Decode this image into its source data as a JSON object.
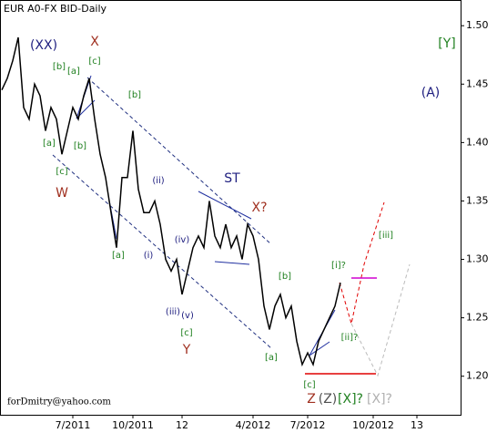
{
  "chart_data": {
    "type": "line",
    "title": "EUR A0-FX BID-Daily",
    "color": "#000000",
    "categories": [
      null,
      null,
      null,
      null,
      null,
      null,
      null,
      null,
      null,
      null,
      null,
      null,
      null,
      "7/2011",
      null,
      null,
      null,
      null,
      null,
      null,
      null,
      null,
      null,
      null,
      "10/2011",
      null,
      null,
      null,
      null,
      null,
      null,
      null,
      null,
      "12",
      null,
      null,
      null,
      null,
      null,
      null,
      null,
      null,
      null,
      null,
      null,
      null,
      "4/2012",
      null,
      null,
      null,
      null,
      null,
      null,
      null,
      null,
      null,
      "7/2012",
      null,
      null,
      null,
      null,
      null,
      null,
      null,
      null,
      null,
      null,
      null,
      "10/2012",
      null,
      null,
      null,
      null,
      null,
      null,
      null,
      "13",
      null,
      null,
      null,
      null,
      null,
      null,
      null,
      null
    ],
    "values": [
      1.445,
      1.455,
      1.47,
      1.49,
      1.43,
      1.42,
      1.45,
      1.44,
      1.41,
      1.43,
      1.42,
      1.39,
      1.41,
      1.43,
      1.42,
      1.44,
      1.455,
      1.42,
      1.39,
      1.37,
      1.34,
      1.31,
      1.37,
      1.37,
      1.41,
      1.36,
      1.34,
      1.34,
      1.35,
      1.33,
      1.3,
      1.29,
      1.3,
      1.27,
      1.29,
      1.31,
      1.32,
      1.31,
      1.35,
      1.32,
      1.31,
      1.33,
      1.31,
      1.32,
      1.3,
      1.33,
      1.32,
      1.3,
      1.26,
      1.24,
      1.26,
      1.27,
      1.25,
      1.26,
      1.23,
      1.21,
      1.22,
      1.21,
      1.23,
      1.24,
      1.25,
      1.26,
      1.28,
      null,
      null,
      null,
      null,
      null,
      null,
      null,
      null,
      null,
      null,
      null,
      null,
      null,
      null,
      null,
      null,
      null,
      null,
      null,
      null,
      null,
      null
    ],
    "ylim": [
      1.167,
      1.522
    ],
    "yticks": [
      {
        "value": 1.2,
        "label": "1.20"
      },
      1.25,
      {
        "value": 1.3,
        "label": "1.30"
      },
      1.35,
      {
        "value": 1.4,
        "label": "1.40"
      },
      1.45,
      {
        "value": 1.5,
        "label": "1.50"
      }
    ],
    "annotations": [
      "(XX)",
      "X",
      "[Y]",
      "(A)",
      "[b]",
      "[a]",
      "[c]",
      "[b]",
      "[a]",
      "[b]",
      "[c]",
      "W",
      "(ii)",
      "ST",
      "X?",
      "(iv)",
      "(i)",
      "[a]",
      "[b]",
      "[i]?",
      "[iii]",
      "(iii)",
      "(v)",
      "[c]",
      "Y",
      "[a]",
      "[ii]?",
      "[c]",
      "Z",
      "(Z)",
      "[X]?",
      "[X]?"
    ],
    "footer": "forDmitry@yahoo.com"
  }
}
